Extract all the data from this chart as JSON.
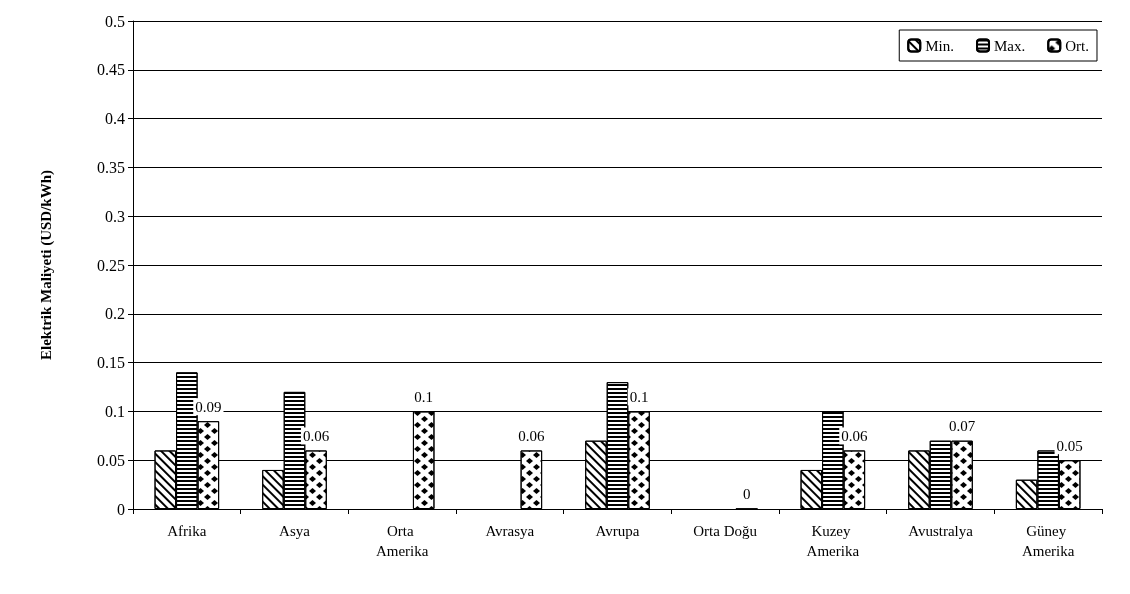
{
  "chart_data": {
    "type": "bar",
    "ylabel": "Elektrik Maliyeti (USD/kWh)",
    "categories": [
      "Afrika",
      "Asya",
      "Orta Amerika",
      "Avrasya",
      "Avrupa",
      "Orta Doğu",
      "Kuzey Amerika",
      "Avustralya",
      "Güney Amerika"
    ],
    "series": [
      {
        "name": "Min.",
        "color": "#000000",
        "values": [
          0.06,
          0.04,
          null,
          null,
          0.07,
          null,
          0.04,
          0.06,
          0.03
        ]
      },
      {
        "name": "Max.",
        "color": "#000000",
        "values": [
          0.14,
          0.12,
          null,
          null,
          0.13,
          null,
          0.1,
          0.07,
          0.06
        ]
      },
      {
        "name": "Ort.",
        "color": "#000000",
        "values": [
          0.09,
          0.06,
          0.1,
          0.06,
          0.1,
          0,
          0.06,
          0.07,
          0.05
        ],
        "value_labels": [
          "0.09",
          "0.06",
          "0.1",
          "0.06",
          "0.1",
          "0",
          "0.06",
          "0.07",
          "0.05"
        ]
      }
    ],
    "ylim": [
      0,
      0.5
    ],
    "yticks": [
      0,
      0.05,
      0.1,
      0.15,
      0.2,
      0.25,
      0.3,
      0.35,
      0.4,
      0.45,
      0.5
    ],
    "grid": "y",
    "legend": "top right"
  }
}
